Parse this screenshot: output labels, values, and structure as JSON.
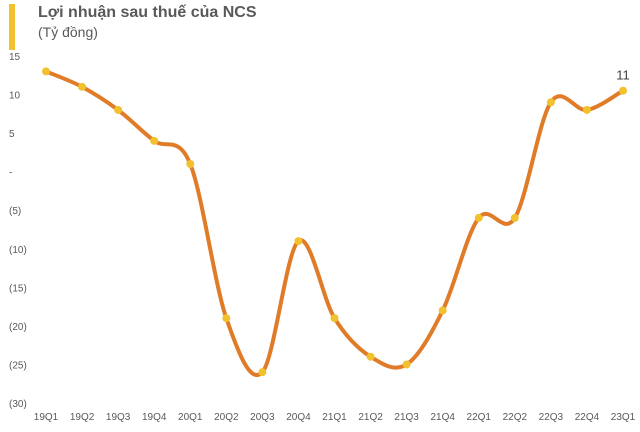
{
  "chart_data": {
    "type": "line",
    "title": "Lợi nhuận sau thuế của NCS",
    "subtitle": "(Tỷ đồng)",
    "categories": [
      "19Q1",
      "19Q2",
      "19Q3",
      "19Q4",
      "20Q1",
      "20Q2",
      "20Q3",
      "20Q4",
      "21Q1",
      "21Q2",
      "21Q3",
      "21Q4",
      "22Q1",
      "22Q2",
      "22Q3",
      "22Q4",
      "23Q1"
    ],
    "series": [
      {
        "values": [
          13,
          11,
          8,
          4,
          1,
          -19,
          -26,
          -9,
          -19,
          -24,
          -25,
          -18,
          -6,
          -6,
          9,
          8,
          10.5
        ]
      }
    ],
    "ylim": [
      -30,
      15
    ],
    "yticks": [
      15,
      10,
      5,
      0,
      -5,
      -10,
      -15,
      -20,
      -25,
      -30
    ],
    "ytick_labels": [
      "15",
      "10",
      "5",
      "-",
      "(5)",
      "(10)",
      "(15)",
      "(20)",
      "(25)",
      "(30)"
    ],
    "data_labels": [
      {
        "index": 16,
        "text": "11"
      }
    ],
    "grid": false,
    "smooth": true,
    "colors": {
      "line": "#e07b28",
      "marker": "#f2c12e",
      "accent": "#f2c12e"
    }
  }
}
